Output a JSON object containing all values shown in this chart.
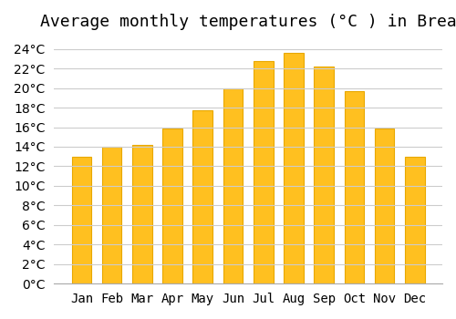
{
  "title": "Average monthly temperatures (°C ) in Brea",
  "months": [
    "Jan",
    "Feb",
    "Mar",
    "Apr",
    "May",
    "Jun",
    "Jul",
    "Aug",
    "Sep",
    "Oct",
    "Nov",
    "Dec"
  ],
  "values": [
    13.0,
    14.0,
    14.2,
    15.9,
    17.7,
    20.0,
    22.8,
    23.6,
    22.2,
    19.7,
    15.9,
    13.0
  ],
  "bar_color": "#FFC020",
  "bar_edge_color": "#E8A800",
  "background_color": "#FFFFFF",
  "grid_color": "#CCCCCC",
  "ylim": [
    0,
    25
  ],
  "ytick_step": 2,
  "title_fontsize": 13,
  "tick_fontsize": 10,
  "tick_font_family": "monospace"
}
